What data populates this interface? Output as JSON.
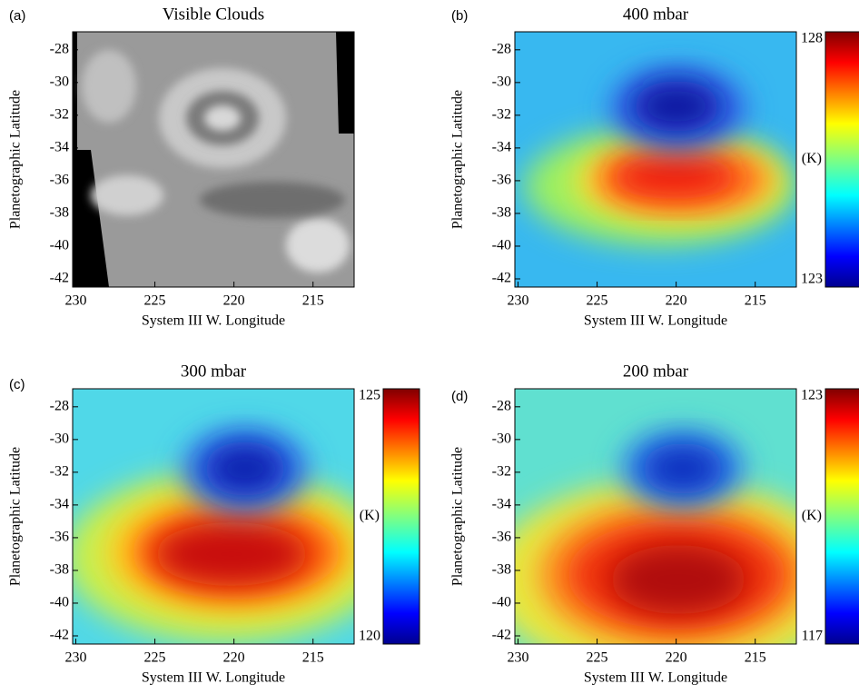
{
  "chart_data": [
    {
      "type": "image",
      "panel_label": "(a)",
      "title": "Visible Clouds",
      "xlabel": "System III W. Longitude",
      "ylabel": "Planetographic Latitude",
      "xlim": [
        230.2,
        212.4
      ],
      "xticks": [
        230,
        225,
        220,
        215
      ],
      "ylim": [
        -42.5,
        -26.9
      ],
      "yticks": [
        -28,
        -30,
        -32,
        -34,
        -36,
        -38,
        -40,
        -42
      ]
    },
    {
      "type": "heatmap",
      "panel_label": "(b)",
      "title": "400 mbar",
      "xlabel": "System III W. Longitude",
      "ylabel": "Planetographic Latitude",
      "xlim": [
        230.2,
        212.4
      ],
      "xticks": [
        230,
        225,
        220,
        215
      ],
      "ylim": [
        -42.5,
        -26.9
      ],
      "yticks": [
        -28,
        -30,
        -32,
        -34,
        -36,
        -38,
        -40,
        -42
      ],
      "colorbar_label": "(K)",
      "clim": [
        123,
        128
      ],
      "cticks": [
        123,
        128
      ]
    },
    {
      "type": "heatmap",
      "panel_label": "(c)",
      "title": "300 mbar",
      "xlabel": "System III W. Longitude",
      "ylabel": "Planetographic Latitude",
      "xlim": [
        230.2,
        212.4
      ],
      "xticks": [
        230,
        225,
        220,
        215
      ],
      "ylim": [
        -42.5,
        -26.9
      ],
      "yticks": [
        -28,
        -30,
        -32,
        -34,
        -36,
        -38,
        -40,
        -42
      ],
      "colorbar_label": "(K)",
      "clim": [
        120,
        125
      ],
      "cticks": [
        120,
        125
      ]
    },
    {
      "type": "heatmap",
      "panel_label": "(d)",
      "title": "200 mbar",
      "xlabel": "System III W. Longitude",
      "ylabel": "Planetographic Latitude",
      "xlim": [
        230.2,
        212.4
      ],
      "xticks": [
        230,
        225,
        220,
        215
      ],
      "ylim": [
        -42.5,
        -26.9
      ],
      "yticks": [
        -28,
        -30,
        -32,
        -34,
        -36,
        -38,
        -40,
        -42
      ],
      "colorbar_label": "(K)",
      "clim": [
        117,
        123
      ],
      "cticks": [
        117,
        123
      ]
    }
  ]
}
